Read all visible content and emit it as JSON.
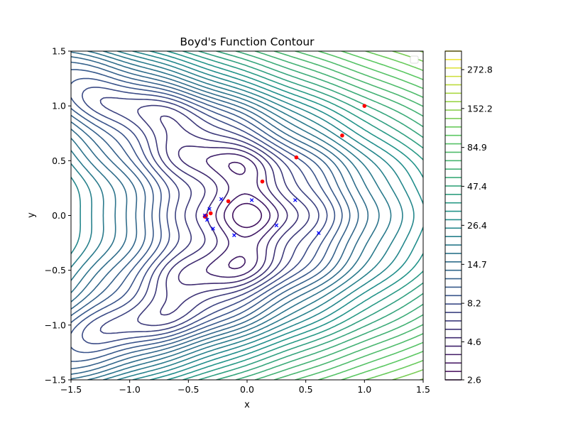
{
  "chart_data": {
    "type": "contour",
    "title": "Boyd's Function Contour",
    "xlabel": "x",
    "ylabel": "y",
    "xlim": [
      -1.5,
      1.5
    ],
    "ylim": [
      -1.5,
      1.5
    ],
    "x_ticks": [
      "−1.5",
      "−1.0",
      "−0.5",
      "0.0",
      "0.5",
      "1.0",
      "1.5"
    ],
    "y_ticks": [
      "−1.5",
      "−1.0",
      "−0.5",
      "0.0",
      "0.5",
      "1.0",
      "1.5"
    ],
    "x_tick_values": [
      -1.5,
      -1.0,
      -0.5,
      0.0,
      0.5,
      1.0,
      1.5
    ],
    "y_tick_values": [
      -1.5,
      -1.0,
      -0.5,
      0.0,
      0.5,
      1.0,
      1.5
    ],
    "colorbar": {
      "colormap": "viridis",
      "ticks": [
        "2.6",
        "4.6",
        "8.2",
        "14.7",
        "26.4",
        "47.4",
        "84.9",
        "152.2",
        "272.8"
      ],
      "min": 2.6,
      "max": 360,
      "log_scale": true
    },
    "grid": false,
    "legend": "top-right (empty)",
    "series": [
      {
        "type": "scatter",
        "marker": "circle",
        "color": "#ff0000",
        "points": [
          [
            1.0,
            1.0
          ],
          [
            0.81,
            0.73
          ],
          [
            0.42,
            0.53
          ],
          [
            0.13,
            0.31
          ],
          [
            -0.16,
            0.13
          ],
          [
            -0.31,
            0.02
          ],
          [
            -0.35,
            0.0
          ],
          [
            -0.36,
            -0.01
          ]
        ]
      },
      {
        "type": "scatter",
        "marker": "x",
        "color": "#0000ff",
        "points": [
          [
            0.61,
            -0.16
          ],
          [
            0.41,
            0.14
          ],
          [
            0.25,
            -0.09
          ],
          [
            0.04,
            0.14
          ],
          [
            -0.11,
            -0.18
          ],
          [
            -0.22,
            0.15
          ],
          [
            -0.29,
            -0.12
          ],
          [
            -0.32,
            0.06
          ],
          [
            -0.34,
            -0.04
          ],
          [
            -0.36,
            0.0
          ]
        ]
      }
    ]
  }
}
